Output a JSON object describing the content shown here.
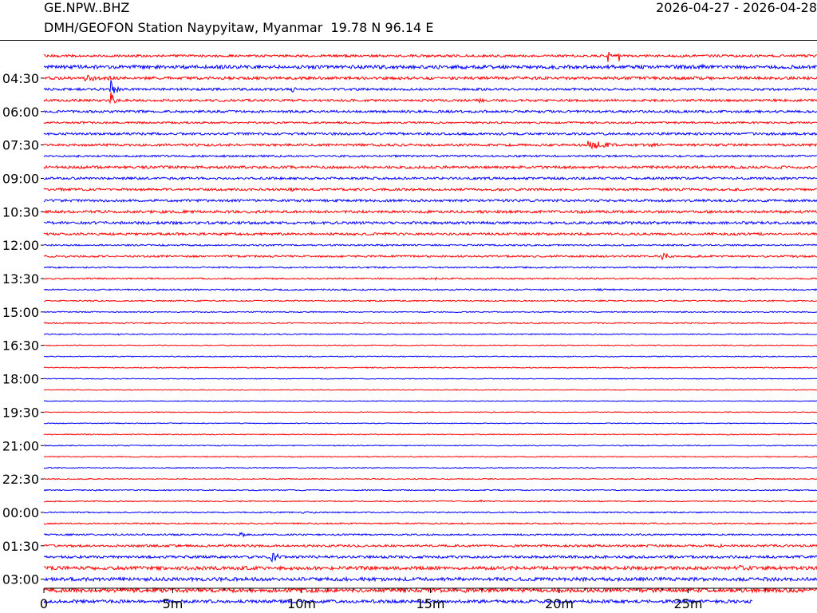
{
  "header": {
    "station_code": "GE.NPW..BHZ",
    "date_range": "2026-04-27 - 2026-04-28",
    "station_info": "DMH/GEOFON Station Naypyitaw, Myanmar  19.78 N 96.14 E"
  },
  "colors": {
    "trace_a": "#ff0000",
    "trace_b": "#0000ff",
    "axis": "#000000"
  },
  "chart_data": {
    "type": "line",
    "subtype": "helicorder",
    "xlim": [
      0,
      30
    ],
    "x_unit": "minutes",
    "x_ticks": [
      {
        "value": 0,
        "label": "0"
      },
      {
        "value": 5,
        "label": "5m"
      },
      {
        "value": 10,
        "label": "10m"
      },
      {
        "value": 15,
        "label": "15m"
      },
      {
        "value": 20,
        "label": "20m"
      },
      {
        "value": 25,
        "label": "25m"
      }
    ],
    "x_minor_ticks": [
      1,
      2,
      3,
      4,
      6,
      7,
      8,
      9,
      11,
      12,
      13,
      14,
      16,
      17,
      18,
      19,
      21,
      22,
      23,
      24,
      26,
      27,
      28,
      29
    ],
    "y_labels": [
      "04:30",
      "06:00",
      "07:30",
      "09:00",
      "10:30",
      "12:00",
      "13:30",
      "15:00",
      "16:30",
      "18:00",
      "19:30",
      "21:00",
      "22:30",
      "00:00",
      "01:30",
      "03:00"
    ],
    "grid": false,
    "legend": "none",
    "rows": [
      {
        "noise": 1.5,
        "color": "trace_a",
        "events": [
          {
            "t": 21.9,
            "amp": 10,
            "dur": 0.2
          },
          {
            "t": 22.3,
            "amp": 9,
            "dur": 0.2
          },
          {
            "t": 15.8,
            "amp": 1.5,
            "dur": 1.0
          }
        ]
      },
      {
        "noise": 2.2,
        "color": "trace_b",
        "events": [
          {
            "t": 25.5,
            "amp": 3,
            "dur": 2.5
          },
          {
            "t": 27.5,
            "amp": 3,
            "dur": 1.5
          }
        ]
      },
      {
        "noise": 1.8,
        "color": "trace_a",
        "events": [
          {
            "t": 1.6,
            "amp": 7,
            "dur": 1.0
          },
          {
            "t": 2.5,
            "amp": 5,
            "dur": 0.3
          },
          {
            "t": 7.3,
            "amp": 1.5,
            "dur": 0.5
          }
        ]
      },
      {
        "noise": 1.5,
        "color": "trace_b",
        "events": [
          {
            "t": 2.6,
            "amp": 14,
            "dur": 0.4
          },
          {
            "t": 9.6,
            "amp": 6,
            "dur": 0.4
          },
          {
            "t": 23.0,
            "amp": 1.5,
            "dur": 0.7
          }
        ]
      },
      {
        "noise": 1.5,
        "color": "trace_a",
        "events": [
          {
            "t": 2.6,
            "amp": 12,
            "dur": 0.3
          },
          {
            "t": 16.8,
            "amp": 3,
            "dur": 2.0
          }
        ]
      },
      {
        "noise": 1.5,
        "color": "trace_b",
        "events": [
          {
            "t": 2.8,
            "amp": 2.5,
            "dur": 0.6
          }
        ]
      },
      {
        "noise": 1.2,
        "color": "trace_a",
        "events": []
      },
      {
        "noise": 1.5,
        "color": "trace_b",
        "events": []
      },
      {
        "noise": 1.5,
        "color": "trace_a",
        "events": [
          {
            "t": 21.1,
            "amp": 6,
            "dur": 2.5
          },
          {
            "t": 23.5,
            "amp": 2.5,
            "dur": 3.0
          }
        ]
      },
      {
        "noise": 1.2,
        "color": "trace_b",
        "events": []
      },
      {
        "noise": 1.7,
        "color": "trace_a",
        "events": [
          {
            "t": 23.5,
            "amp": 2,
            "dur": 4.0
          },
          {
            "t": 28.5,
            "amp": 2.5,
            "dur": 1.5
          }
        ]
      },
      {
        "noise": 1.5,
        "color": "trace_b",
        "events": []
      },
      {
        "noise": 1.5,
        "color": "trace_a",
        "events": [
          {
            "t": 0.5,
            "amp": 3,
            "dur": 0.8
          },
          {
            "t": 9.5,
            "amp": 2.5,
            "dur": 2.5
          }
        ]
      },
      {
        "noise": 1.5,
        "color": "trace_b",
        "events": []
      },
      {
        "noise": 1.7,
        "color": "trace_a",
        "events": []
      },
      {
        "noise": 1.7,
        "color": "trace_b",
        "events": [
          {
            "t": 1.8,
            "amp": 2,
            "dur": 3.0
          }
        ]
      },
      {
        "noise": 1.5,
        "color": "trace_a",
        "events": [
          {
            "t": 17.8,
            "amp": 1.5,
            "dur": 0.5
          }
        ]
      },
      {
        "noise": 1.0,
        "color": "trace_b",
        "events": []
      },
      {
        "noise": 1.2,
        "color": "trace_a",
        "events": [
          {
            "t": 24.0,
            "amp": 8,
            "dur": 0.4
          },
          {
            "t": 28.0,
            "amp": 1.5,
            "dur": 0.5
          }
        ]
      },
      {
        "noise": 0.9,
        "color": "trace_b",
        "events": []
      },
      {
        "noise": 0.9,
        "color": "trace_a",
        "events": [
          {
            "t": 14.8,
            "amp": 2.5,
            "dur": 0.15
          },
          {
            "t": 15.2,
            "amp": 2.5,
            "dur": 0.15
          }
        ]
      },
      {
        "noise": 0.9,
        "color": "trace_b",
        "events": [
          {
            "t": 21.5,
            "amp": 1.5,
            "dur": 1.2
          },
          {
            "t": 28.0,
            "amp": 1.2,
            "dur": 0.5
          }
        ]
      },
      {
        "noise": 0.8,
        "color": "trace_a",
        "events": [
          {
            "t": 9.3,
            "amp": 1.2,
            "dur": 0.3
          }
        ]
      },
      {
        "noise": 0.7,
        "color": "trace_b",
        "events": []
      },
      {
        "noise": 0.8,
        "color": "trace_a",
        "events": [
          {
            "t": 2.8,
            "amp": 1.5,
            "dur": 0.3
          }
        ]
      },
      {
        "noise": 0.7,
        "color": "trace_b",
        "events": [
          {
            "t": 2.9,
            "amp": 1.5,
            "dur": 0.3
          }
        ]
      },
      {
        "noise": 0.6,
        "color": "trace_a",
        "events": []
      },
      {
        "noise": 0.6,
        "color": "trace_b",
        "events": []
      },
      {
        "noise": 0.6,
        "color": "trace_a",
        "events": [
          {
            "t": 11.5,
            "amp": 1,
            "dur": 0.2
          }
        ]
      },
      {
        "noise": 0.5,
        "color": "trace_b",
        "events": []
      },
      {
        "noise": 0.5,
        "color": "trace_a",
        "events": []
      },
      {
        "noise": 0.5,
        "color": "trace_b",
        "events": []
      },
      {
        "noise": 0.5,
        "color": "trace_a",
        "events": []
      },
      {
        "noise": 0.5,
        "color": "trace_b",
        "events": []
      },
      {
        "noise": 0.6,
        "color": "trace_a",
        "events": [
          {
            "t": 25.8,
            "amp": 1,
            "dur": 0.2
          },
          {
            "t": 28.5,
            "amp": 1,
            "dur": 0.3
          }
        ]
      },
      {
        "noise": 0.6,
        "color": "trace_b",
        "events": [
          {
            "t": 0.0,
            "amp": 1.2,
            "dur": 0.3
          }
        ]
      },
      {
        "noise": 0.6,
        "color": "trace_a",
        "events": []
      },
      {
        "noise": 0.6,
        "color": "trace_b",
        "events": []
      },
      {
        "noise": 0.6,
        "color": "trace_a",
        "events": []
      },
      {
        "noise": 0.7,
        "color": "trace_b",
        "events": [
          {
            "t": 2.0,
            "amp": 1.2,
            "dur": 0.3
          },
          {
            "t": 15.2,
            "amp": 1.2,
            "dur": 0.3
          }
        ]
      },
      {
        "noise": 0.7,
        "color": "trace_a",
        "events": [
          {
            "t": 16.9,
            "amp": 3,
            "dur": 0.3
          }
        ]
      },
      {
        "noise": 0.8,
        "color": "trace_b",
        "events": [
          {
            "t": 10.0,
            "amp": 1.5,
            "dur": 2.0
          }
        ]
      },
      {
        "noise": 0.9,
        "color": "trace_a",
        "events": [
          {
            "t": 23.0,
            "amp": 1,
            "dur": 2.0
          }
        ]
      },
      {
        "noise": 1.0,
        "color": "trace_b",
        "events": [
          {
            "t": 7.6,
            "amp": 6,
            "dur": 0.4
          }
        ]
      },
      {
        "noise": 1.4,
        "color": "trace_a",
        "events": [
          {
            "t": 8.7,
            "amp": 4,
            "dur": 0.4
          },
          {
            "t": 26.2,
            "amp": 3,
            "dur": 0.4
          }
        ]
      },
      {
        "noise": 1.6,
        "color": "trace_b",
        "events": [
          {
            "t": 8.8,
            "amp": 12,
            "dur": 0.5
          }
        ]
      },
      {
        "noise": 2.2,
        "color": "trace_a",
        "events": [
          {
            "t": 27.0,
            "amp": 3.5,
            "dur": 2.5
          }
        ]
      },
      {
        "noise": 2.2,
        "color": "trace_b",
        "events": []
      },
      {
        "noise": 2.5,
        "color": "trace_a",
        "events": [
          {
            "t": 6.3,
            "amp": 3,
            "dur": 0.5
          }
        ]
      },
      {
        "noise": 2.0,
        "color": "trace_b",
        "events": [],
        "end": 27.5
      }
    ]
  }
}
